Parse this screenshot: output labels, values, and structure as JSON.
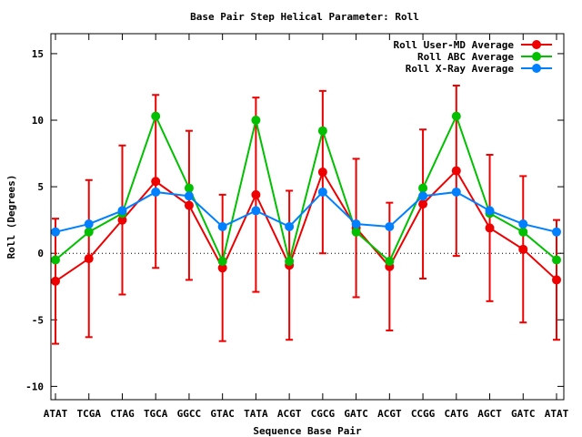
{
  "chart_data": {
    "type": "line",
    "title": "Base Pair Step Helical Parameter: Roll",
    "xlabel": "Sequence Base Pair",
    "ylabel": "Roll (Degrees)",
    "ylim": [
      -11,
      16.5
    ],
    "yticks": [
      -10,
      -5,
      0,
      5,
      10,
      15
    ],
    "ytick_labels": [
      "-10",
      "-5",
      "0",
      "5",
      "10",
      "15"
    ],
    "categories": [
      "ATAT",
      "TCGA",
      "CTAG",
      "TGCA",
      "GGCC",
      "GTAC",
      "TATA",
      "ACGT",
      "CGCG",
      "GATC",
      "ACGT",
      "CCGG",
      "CATG",
      "AGCT",
      "GATC",
      "ATAT"
    ],
    "legend_position": "top-right",
    "series": [
      {
        "name": "Roll User-MD Average",
        "color": "#ee0000",
        "values": [
          -2.1,
          -0.4,
          2.5,
          5.4,
          3.6,
          -1.1,
          4.4,
          -0.9,
          6.1,
          1.9,
          -1.0,
          3.7,
          6.2,
          1.9,
          0.3,
          -2.0
        ],
        "error": [
          4.7,
          5.9,
          5.6,
          6.5,
          5.6,
          5.5,
          7.3,
          5.6,
          6.1,
          5.2,
          4.8,
          5.6,
          6.4,
          5.5,
          5.5,
          4.5
        ]
      },
      {
        "name": "Roll ABC Average",
        "color": "#00c000",
        "values": [
          -0.5,
          1.6,
          3.0,
          10.3,
          4.9,
          -0.6,
          10.0,
          -0.6,
          9.2,
          1.6,
          -0.6,
          4.9,
          10.3,
          3.0,
          1.6,
          -0.5
        ]
      },
      {
        "name": "Roll X-Ray Average",
        "color": "#0080ff",
        "values": [
          1.6,
          2.2,
          3.2,
          4.6,
          4.3,
          2.0,
          3.2,
          2.0,
          4.6,
          2.2,
          2.0,
          4.3,
          4.6,
          3.2,
          2.2,
          1.6
        ]
      }
    ]
  }
}
